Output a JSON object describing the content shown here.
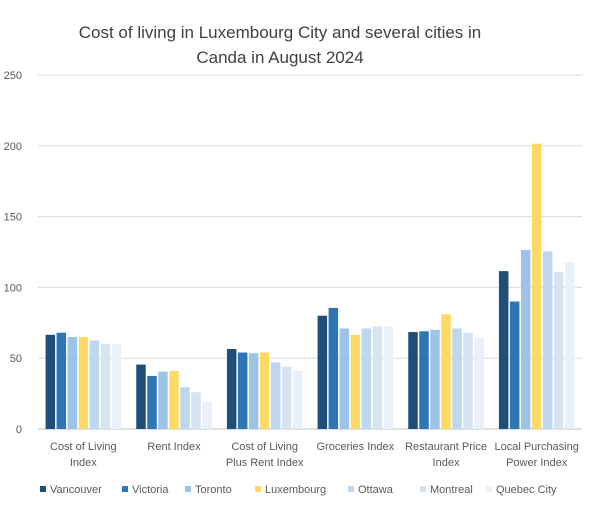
{
  "chart_data": {
    "type": "bar",
    "title_line1": "Cost of living in Luxembourg City and several cities in",
    "title_line2": "Canda in August 2024",
    "categories": [
      [
        "Cost of Living",
        "Index"
      ],
      [
        "Rent Index"
      ],
      [
        "Cost of Living",
        "Plus Rent Index"
      ],
      [
        "Groceries Index"
      ],
      [
        "Restaurant Price",
        "Index"
      ],
      [
        "Local Purchasing",
        "Power Index"
      ]
    ],
    "ylim": [
      0,
      250
    ],
    "yticks": [
      0,
      50,
      100,
      150,
      200,
      250
    ],
    "grid": true,
    "legend_position": "bottom",
    "series": [
      {
        "name": "Vancouver",
        "color": "#1f4e79",
        "values": [
          66.5,
          45.5,
          56.5,
          80,
          68.5,
          111.5
        ]
      },
      {
        "name": "Victoria",
        "color": "#2e75b6",
        "values": [
          68,
          37.5,
          54,
          85.5,
          69,
          90
        ]
      },
      {
        "name": "Toronto",
        "color": "#9dc3e6",
        "values": [
          65,
          40.5,
          53.5,
          71,
          70,
          126.5
        ]
      },
      {
        "name": "Luxembourg",
        "color": "#ffd966",
        "values": [
          65,
          41,
          54,
          66.5,
          81,
          201.5
        ]
      },
      {
        "name": "Ottawa",
        "color": "#bdd7ee",
        "values": [
          62.5,
          29.5,
          47,
          71,
          71,
          125.5
        ]
      },
      {
        "name": "Montreal",
        "color": "#d6e4f2",
        "values": [
          60,
          26,
          44,
          72.5,
          68,
          111
        ]
      },
      {
        "name": "Quebec City",
        "color": "#e8f0f9",
        "values": [
          60,
          19,
          41,
          72.5,
          64.5,
          118
        ]
      }
    ]
  }
}
